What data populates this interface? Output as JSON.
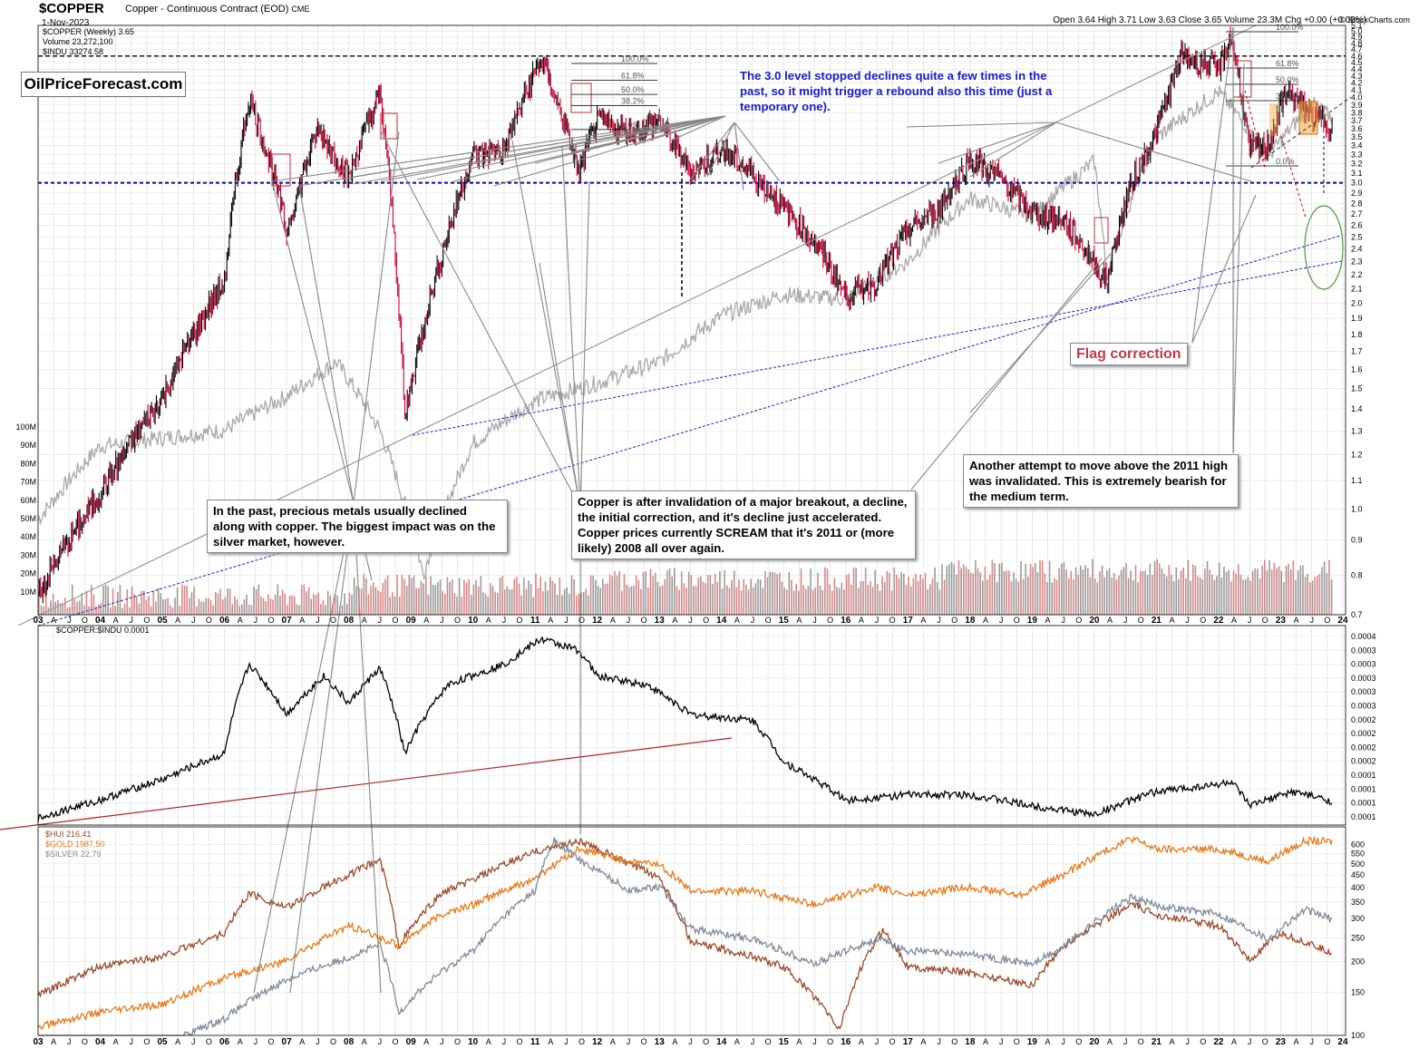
{
  "header": {
    "symbol": "$COPPER",
    "description": "Copper - Continuous Contract (EOD)",
    "exchange": "CME",
    "date": "1-Nov-2023",
    "ohlc": "Open 3.64  High 3.71  Low 3.63  Close 3.65  Volume 23.3M  Chg +0.00 (+0.08%)",
    "copyright": "© StockCharts.com"
  },
  "legend_top": {
    "line1": "$COPPER (Weekly) 3.65",
    "line2": "Volume 23,272,100",
    "line3": "$INDU 33274.58"
  },
  "legend_mid": {
    "line1": "$COPPER:$INDU 0.0001"
  },
  "legend_bottom": {
    "hui": "$HUI 216.41",
    "gold": "$GOLD 1987.50",
    "silver": "$SILVER 22.79"
  },
  "logo": "OilPriceForecast.com",
  "notes": {
    "blue": "The 3.0 level stopped declines quite a few times in the past, so it might trigger a rebound also this time (just a temporary one).",
    "flag": "Flag correction",
    "another": "Another attempt to move above the 2011 high was invalidated. This is extremely bearish for the medium term.",
    "copper": "Copper is after invalidation of a major breakout, a decline, the initial correction, and it's decline just accelerated. Copper prices currently SCREAM that it's 2011 or (more likely) 2008 all over again.",
    "pm": "In the past, precious metals usually declined along with copper. The biggest impact was on the silver market, however."
  },
  "fib_labels": [
    "100.0%",
    "61.8%",
    "50.0%",
    "38.2%",
    "0.0%"
  ],
  "colors": {
    "copper_up": "#000000",
    "copper_down": "#cc0033",
    "indu": "#a8a8a8",
    "blue_dash": "#1f1fc8",
    "hui": "#9b4a2a",
    "gold": "#e67a1a",
    "silver": "#7f8a99",
    "ratio": "#000000",
    "ratio_trend": "#b22222",
    "flag_box": "#f5a640"
  },
  "chart_data": [
    {
      "type": "line",
      "title": "$COPPER (Weekly) 3.65",
      "x": [
        "2003",
        "2004",
        "2005",
        "2006",
        "2007",
        "2008",
        "2009",
        "2010",
        "2011",
        "2012",
        "2013",
        "2014",
        "2015",
        "2016",
        "2017",
        "2018",
        "2019",
        "2020",
        "2021",
        "2022",
        "2023",
        "2024"
      ],
      "x_tick_labels": [
        "03",
        "A",
        "J",
        "O",
        "04",
        "A",
        "J",
        "O",
        "05",
        "A",
        "J",
        "O",
        "06",
        "A",
        "J",
        "O",
        "07",
        "A",
        "J",
        "O",
        "08",
        "A",
        "J",
        "O",
        "09",
        "A",
        "J",
        "O",
        "10",
        "A",
        "J",
        "O",
        "11",
        "A",
        "J",
        "O",
        "12",
        "A",
        "J",
        "O",
        "13",
        "A",
        "J",
        "O",
        "14",
        "A",
        "J",
        "O",
        "15",
        "A",
        "J",
        "O",
        "16",
        "A",
        "J",
        "O",
        "17",
        "A",
        "J",
        "O",
        "18",
        "A",
        "J",
        "O",
        "19",
        "A",
        "J",
        "O",
        "20",
        "A",
        "J",
        "O",
        "21",
        "A",
        "J",
        "O",
        "22",
        "A",
        "J",
        "O",
        "23",
        "A",
        "J",
        "O",
        "24"
      ],
      "y_tick_labels": [
        "5.1",
        "5.0",
        "4.9",
        "4.8",
        "4.7",
        "4.6",
        "4.5",
        "4.4",
        "4.3",
        "4.2",
        "4.1",
        "4.0",
        "3.9",
        "3.8",
        "3.7",
        "3.6",
        "3.5",
        "3.4",
        "3.3",
        "3.2",
        "3.1",
        "3.0",
        "2.9",
        "2.8",
        "2.7",
        "2.6",
        "2.5",
        "2.4",
        "2.3",
        "2.2",
        "2.1",
        "2.0",
        "1.9",
        "1.8",
        "1.7",
        "1.6",
        "1.5",
        "1.4",
        "1.3",
        "1.2",
        "1.1",
        "1.0",
        "0.9",
        "0.8",
        "0.7"
      ],
      "volume_tick_labels": [
        "100M",
        "90M",
        "80M",
        "70M",
        "60M",
        "50M",
        "40M",
        "30M",
        "20M",
        "10M"
      ],
      "ylim": [
        0.7,
        5.1
      ],
      "horizontal_levels": [
        3.0,
        4.6
      ],
      "series": [
        {
          "name": "$COPPER (Weekly) 3.65",
          "x": [
            2003.0,
            2004.0,
            2005.0,
            2006.0,
            2006.4,
            2007.0,
            2007.5,
            2008.0,
            2008.5,
            2008.9,
            2009.5,
            2010.0,
            2010.5,
            2011.1,
            2011.7,
            2012.0,
            2012.5,
            2013.0,
            2013.5,
            2014.0,
            2014.5,
            2015.0,
            2015.5,
            2016.0,
            2016.5,
            2017.0,
            2017.5,
            2018.0,
            2018.5,
            2019.0,
            2019.5,
            2020.2,
            2020.6,
            2021.0,
            2021.4,
            2022.0,
            2022.2,
            2022.5,
            2022.8,
            2023.1,
            2023.5,
            2023.84
          ],
          "y": [
            0.75,
            1.05,
            1.45,
            2.15,
            4.0,
            2.55,
            3.6,
            3.05,
            4.05,
            1.35,
            2.35,
            3.3,
            3.35,
            4.55,
            3.1,
            3.7,
            3.55,
            3.7,
            3.1,
            3.35,
            3.1,
            2.75,
            2.45,
            2.05,
            2.15,
            2.55,
            2.75,
            3.25,
            3.05,
            2.7,
            2.65,
            2.15,
            3.0,
            3.55,
            4.6,
            4.4,
            4.9,
            3.35,
            3.4,
            4.1,
            3.75,
            3.65
          ]
        },
        {
          "name": "$INDU 33274.58",
          "x": [
            2003.0,
            2004.0,
            2005.0,
            2006.0,
            2007.0,
            2007.8,
            2008.5,
            2009.2,
            2010.0,
            2011.0,
            2012.0,
            2013.0,
            2014.0,
            2015.0,
            2016.0,
            2017.0,
            2018.0,
            2019.0,
            2020.0,
            2020.2,
            2021.0,
            2022.0,
            2022.8,
            2023.5,
            2023.84
          ],
          "y": [
            8000,
            10400,
            10700,
            11000,
            12400,
            14000,
            11000,
            6600,
            10500,
            12200,
            13000,
            14000,
            16500,
            17800,
            17500,
            20000,
            25000,
            23500,
            28500,
            19000,
            31000,
            36500,
            29000,
            35000,
            33274
          ]
        }
      ]
    },
    {
      "type": "line",
      "title": "$COPPER:$INDU 0.0001",
      "y_tick_labels": [
        "0.0004",
        "0.0003",
        "0.0003",
        "0.0003",
        "0.0003",
        "0.0003",
        "0.0002",
        "0.0002",
        "0.0002",
        "0.0002",
        "0.0001",
        "0.0001",
        "0.0001",
        "0.0001"
      ],
      "series": [
        {
          "name": "$COPPER:$INDU 0.0001",
          "x": [
            2003.0,
            2004.0,
            2005.0,
            2006.0,
            2006.4,
            2007.0,
            2007.6,
            2008.0,
            2008.5,
            2008.9,
            2009.6,
            2010.5,
            2011.1,
            2011.7,
            2012.0,
            2012.8,
            2013.5,
            2014.5,
            2015.0,
            2016.0,
            2017.0,
            2018.0,
            2019.0,
            2020.0,
            2021.0,
            2022.0,
            2022.2,
            2022.5,
            2023.2,
            2023.84
          ],
          "y": [
            9.5e-05,
            0.00011,
            0.00013,
            0.00016,
            0.00033,
            0.00022,
            0.0003,
            0.00024,
            0.00032,
            0.00016,
            0.00028,
            0.00033,
            0.000405,
            0.00037,
            0.0003,
            0.00028,
            0.00022,
            0.00021,
            0.00015,
            0.00011,
            0.000115,
            0.000115,
            0.000105,
            9.8e-05,
            0.000118,
            0.000125,
            0.000128,
            0.000105,
            0.000118,
            0.000109
          ]
        }
      ]
    },
    {
      "type": "line",
      "title": "",
      "y_tick_labels": [
        "600",
        "550",
        "500",
        "450",
        "400",
        "350",
        "300",
        "250",
        "200",
        "150",
        "100"
      ],
      "series": [
        {
          "name": "$HUI 216.41",
          "x": [
            2003.0,
            2004.0,
            2005.0,
            2006.0,
            2006.4,
            2007.0,
            2008.0,
            2008.5,
            2008.8,
            2009.5,
            2010.0,
            2011.0,
            2011.7,
            2012.5,
            2013.0,
            2013.5,
            2014.5,
            2015.0,
            2015.9,
            2016.6,
            2017.0,
            2018.0,
            2019.0,
            2019.5,
            2020.6,
            2021.0,
            2022.0,
            2022.5,
            2023.0,
            2023.84
          ],
          "y": [
            145,
            190,
            210,
            260,
            380,
            330,
            450,
            520,
            230,
            380,
            430,
            560,
            620,
            500,
            440,
            240,
            210,
            190,
            105,
            270,
            190,
            180,
            160,
            230,
            340,
            310,
            280,
            200,
            260,
            216
          ]
        },
        {
          "name": "$GOLD 1987.50",
          "x": [
            2003.0,
            2004.0,
            2005.0,
            2006.0,
            2007.0,
            2008.0,
            2008.8,
            2009.5,
            2010.0,
            2011.0,
            2011.7,
            2012.5,
            2013.0,
            2013.5,
            2014.5,
            2015.5,
            2016.5,
            2017.0,
            2018.0,
            2018.8,
            2019.5,
            2020.6,
            2021.0,
            2022.0,
            2022.8,
            2023.4,
            2023.84
          ],
          "y": [
            350,
            400,
            430,
            550,
            650,
            900,
            750,
            1000,
            1100,
            1400,
            1850,
            1650,
            1600,
            1250,
            1250,
            1100,
            1300,
            1200,
            1300,
            1200,
            1450,
            2050,
            1850,
            1850,
            1650,
            2000,
            1987
          ]
        },
        {
          "name": "$SILVER 22.79",
          "x": [
            2003.0,
            2004.0,
            2005.0,
            2006.0,
            2007.0,
            2008.0,
            2008.5,
            2008.8,
            2009.5,
            2010.0,
            2011.0,
            2011.3,
            2011.7,
            2012.5,
            2013.0,
            2013.5,
            2014.5,
            2015.5,
            2016.5,
            2017.0,
            2018.0,
            2019.0,
            2019.5,
            2020.6,
            2021.0,
            2022.0,
            2022.8,
            2023.4,
            2023.84
          ],
          "y": [
            4.8,
            6.5,
            7.0,
            9.0,
            13.0,
            16.0,
            18.0,
            9.5,
            14.0,
            17.0,
            30.0,
            48.0,
            40.0,
            30.0,
            31.0,
            21.0,
            19.0,
            15.0,
            19.0,
            17.0,
            16.5,
            15.0,
            17.5,
            28.0,
            26.0,
            24.0,
            19.0,
            25.0,
            22.79
          ]
        }
      ]
    }
  ]
}
